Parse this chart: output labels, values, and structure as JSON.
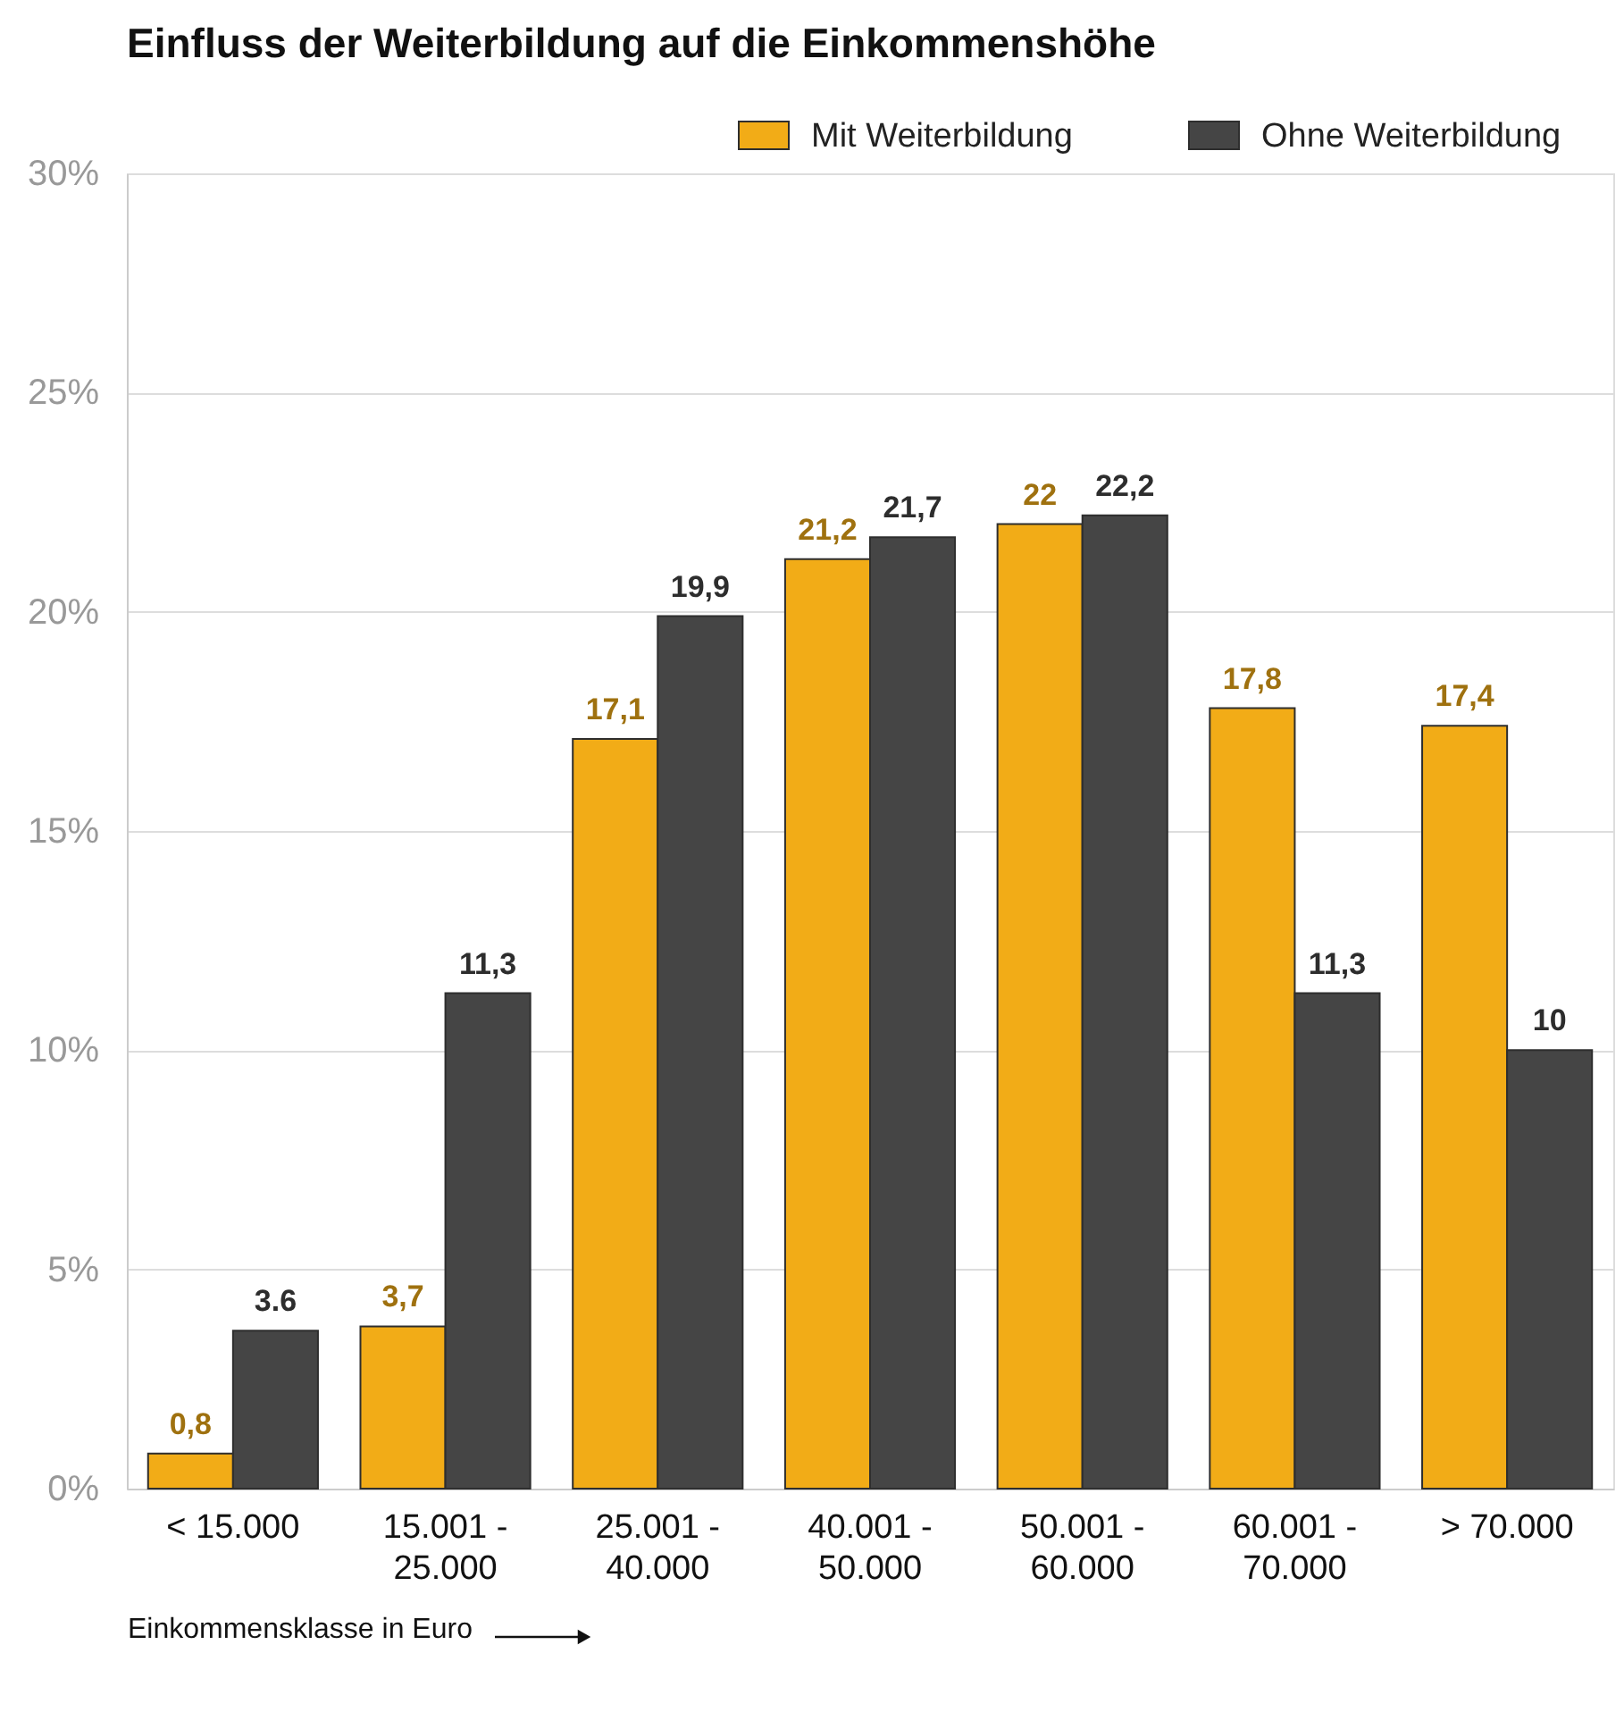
{
  "chart_data": {
    "type": "bar",
    "title": "Einfluss der Weiterbildung auf die Einkommenshöhe",
    "xlabel": "Einkommensklasse in Euro",
    "categories": [
      "< 15.000",
      "15.001 - 25.000",
      "25.001 - 40.000",
      "40.001 - 50.000",
      "50.001 - 60.000",
      "60.001 - 70.000",
      "> 70.000"
    ],
    "series": [
      {
        "name": "Mit Weiterbildung",
        "color": "#f2ac17",
        "values": [
          0.8,
          3.7,
          17.1,
          21.2,
          22,
          17.8,
          17.4
        ],
        "value_labels": [
          "0,8",
          "3,7",
          "17,1",
          "21,2",
          "22",
          "17,8",
          "17,4"
        ]
      },
      {
        "name": "Ohne Weiterbildung",
        "color": "#454545",
        "values": [
          3.6,
          11.3,
          19.9,
          21.7,
          22.2,
          11.3,
          10
        ],
        "value_labels": [
          "3.6",
          "11,3",
          "19,9",
          "21,7",
          "22,2",
          "11,3",
          "10"
        ]
      }
    ],
    "ylim": [
      0,
      30
    ],
    "yticks": [
      {
        "value": 0,
        "label": "0%"
      },
      {
        "value": 5,
        "label": "5%"
      },
      {
        "value": 10,
        "label": "10%"
      },
      {
        "value": 15,
        "label": "15%"
      },
      {
        "value": 20,
        "label": "20%"
      },
      {
        "value": 25,
        "label": "25%"
      },
      {
        "value": 30,
        "label": "30%"
      }
    ],
    "grid": "y",
    "legend": "top right"
  }
}
